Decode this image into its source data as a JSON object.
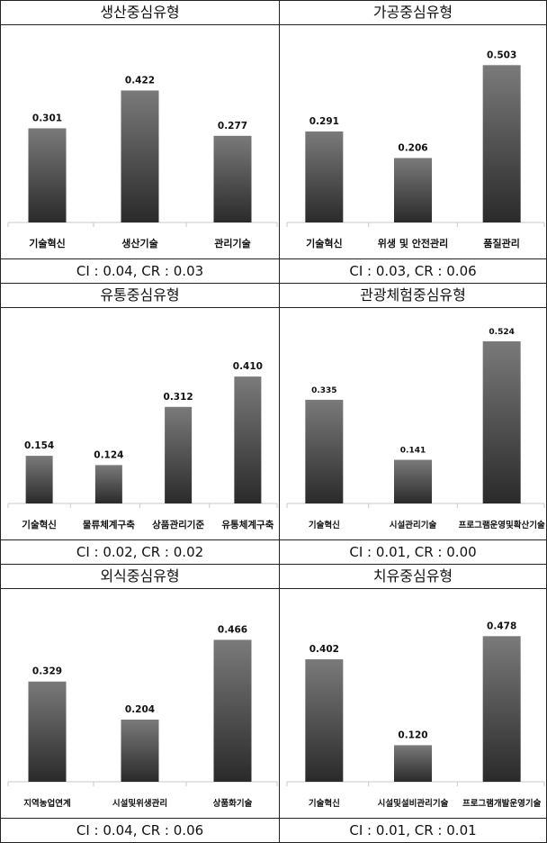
{
  "chart_data": [
    {
      "type": "bar",
      "title": "생산중심유형",
      "categories": [
        "기술혁신",
        "생산기술",
        "관리기술"
      ],
      "values": [
        0.301,
        0.422,
        0.277
      ],
      "value_labels": [
        "0.301",
        "0.422",
        "0.277"
      ],
      "ylim": [
        0,
        0.55
      ],
      "footer": "CI : 0.04, CR : 0.03"
    },
    {
      "type": "bar",
      "title": "가공중심유형",
      "categories": [
        "기술혁신",
        "위생 및 안전관리",
        "품질관리"
      ],
      "values": [
        0.291,
        0.206,
        0.503
      ],
      "value_labels": [
        "0.291",
        "0.206",
        "0.503"
      ],
      "ylim": [
        0,
        0.55
      ],
      "footer": "CI : 0.03, CR : 0.06"
    },
    {
      "type": "bar",
      "title": "유통중심유형",
      "categories": [
        "기술혁신",
        "물류체계구축",
        "상품관리기준",
        "유통체계구축"
      ],
      "values": [
        0.154,
        0.124,
        0.312,
        0.41
      ],
      "value_labels": [
        "0.154",
        "0.124",
        "0.312",
        "0.410"
      ],
      "ylim": [
        0,
        0.55
      ],
      "footer": "CI : 0.02, CR : 0.02"
    },
    {
      "type": "bar",
      "title": "관광체험중심유형",
      "categories": [
        "기술혁신",
        "시설관리기술",
        "프로그램운영및확산기술"
      ],
      "values": [
        0.335,
        0.141,
        0.524
      ],
      "value_labels": [
        "0.335",
        "0.141",
        "0.524"
      ],
      "ylim": [
        0,
        0.55
      ],
      "footer": "CI : 0.01, CR : 0.00"
    },
    {
      "type": "bar",
      "title": "외식중심유형",
      "categories": [
        "지역농업연계",
        "시설및위생관리",
        "상품화기술"
      ],
      "values": [
        0.329,
        0.204,
        0.466
      ],
      "value_labels": [
        "0.329",
        "0.204",
        "0.466"
      ],
      "ylim": [
        0,
        0.55
      ],
      "footer": "CI : 0.04, CR : 0.06"
    },
    {
      "type": "bar",
      "title": "치유중심유형",
      "categories": [
        "기술혁신",
        "시설및설비관리기술",
        "프로그램개발운영기술"
      ],
      "values": [
        0.402,
        0.12,
        0.478
      ],
      "value_labels": [
        "0.402",
        "0.120",
        "0.478"
      ],
      "ylim": [
        0,
        0.55
      ],
      "footer": "CI : 0.01, CR : 0.01"
    }
  ],
  "colors": {
    "bar_top": "#7a7a7a",
    "bar_bottom": "#2a2a2a",
    "axis": "#c8c8c8",
    "border": "#222222"
  }
}
